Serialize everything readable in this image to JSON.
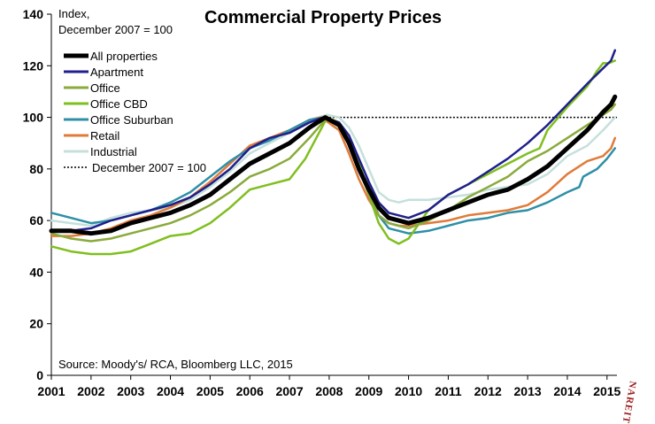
{
  "chart_data": {
    "type": "line",
    "title": "Commercial Property Prices",
    "y_axis_note": [
      "Index,",
      "December 2007 = 100"
    ],
    "source": "Source:  Moody's/ RCA, Bloomberg LLC, 2015",
    "watermark": "NAREIT",
    "xlim": [
      2001,
      2015.25
    ],
    "ylim": [
      0,
      140
    ],
    "x_ticks": [
      2001,
      2002,
      2003,
      2004,
      2005,
      2006,
      2007,
      2008,
      2009,
      2010,
      2011,
      2012,
      2013,
      2014,
      2015
    ],
    "y_ticks": [
      0,
      20,
      40,
      60,
      80,
      100,
      120,
      140
    ],
    "grid": false,
    "legend_position": "top-left",
    "reference_line": {
      "label": "December 2007 = 100",
      "value": 100,
      "x_start": 2008,
      "x_end": 2015.25,
      "style": "dotted"
    },
    "series": [
      {
        "name": "All properties",
        "color": "#000000",
        "width": 5,
        "points": [
          [
            2001,
            56
          ],
          [
            2001.5,
            56
          ],
          [
            2002,
            55
          ],
          [
            2002.5,
            56
          ],
          [
            2003,
            59
          ],
          [
            2003.5,
            61
          ],
          [
            2004,
            63
          ],
          [
            2004.5,
            66
          ],
          [
            2005,
            70
          ],
          [
            2005.5,
            76
          ],
          [
            2006,
            82
          ],
          [
            2006.5,
            86
          ],
          [
            2007,
            90
          ],
          [
            2007.5,
            96
          ],
          [
            2007.9,
            100
          ],
          [
            2008.25,
            97
          ],
          [
            2008.5,
            90
          ],
          [
            2008.75,
            80
          ],
          [
            2009,
            72
          ],
          [
            2009.25,
            65
          ],
          [
            2009.5,
            61
          ],
          [
            2009.75,
            60
          ],
          [
            2010,
            59
          ],
          [
            2010.5,
            61
          ],
          [
            2011,
            64
          ],
          [
            2011.5,
            67
          ],
          [
            2012,
            70
          ],
          [
            2012.5,
            72
          ],
          [
            2013,
            76
          ],
          [
            2013.5,
            81
          ],
          [
            2014,
            88
          ],
          [
            2014.5,
            95
          ],
          [
            2014.9,
            102
          ],
          [
            2015.1,
            105
          ],
          [
            2015.2,
            108
          ]
        ]
      },
      {
        "name": "Apartment",
        "color": "#1f1f8c",
        "width": 2.5,
        "points": [
          [
            2001,
            56
          ],
          [
            2001.5,
            56
          ],
          [
            2002,
            57
          ],
          [
            2002.5,
            60
          ],
          [
            2003,
            62
          ],
          [
            2003.5,
            64
          ],
          [
            2004,
            66
          ],
          [
            2004.5,
            69
          ],
          [
            2005,
            74
          ],
          [
            2005.5,
            80
          ],
          [
            2006,
            88
          ],
          [
            2006.5,
            92
          ],
          [
            2007,
            94
          ],
          [
            2007.5,
            98
          ],
          [
            2007.85,
            100
          ],
          [
            2008.25,
            98
          ],
          [
            2008.5,
            93
          ],
          [
            2008.75,
            84
          ],
          [
            2009,
            75
          ],
          [
            2009.25,
            67
          ],
          [
            2009.5,
            63
          ],
          [
            2009.75,
            62
          ],
          [
            2010,
            61
          ],
          [
            2010.5,
            64
          ],
          [
            2011,
            70
          ],
          [
            2011.5,
            74
          ],
          [
            2012,
            79
          ],
          [
            2012.5,
            84
          ],
          [
            2013,
            90
          ],
          [
            2013.5,
            97
          ],
          [
            2014,
            105
          ],
          [
            2014.5,
            113
          ],
          [
            2014.9,
            119
          ],
          [
            2015.1,
            122
          ],
          [
            2015.2,
            126
          ]
        ]
      },
      {
        "name": "Office",
        "color": "#8aaa3c",
        "width": 2.5,
        "points": [
          [
            2001,
            55
          ],
          [
            2001.5,
            53
          ],
          [
            2002,
            52
          ],
          [
            2002.5,
            53
          ],
          [
            2003,
            55
          ],
          [
            2003.5,
            57
          ],
          [
            2004,
            59
          ],
          [
            2004.5,
            62
          ],
          [
            2005,
            66
          ],
          [
            2005.5,
            71
          ],
          [
            2006,
            77
          ],
          [
            2006.5,
            80
          ],
          [
            2007,
            84
          ],
          [
            2007.5,
            92
          ],
          [
            2007.95,
            100
          ],
          [
            2008.25,
            98
          ],
          [
            2008.5,
            92
          ],
          [
            2008.75,
            80
          ],
          [
            2009,
            70
          ],
          [
            2009.25,
            62
          ],
          [
            2009.5,
            59
          ],
          [
            2009.75,
            58
          ],
          [
            2010,
            57
          ],
          [
            2010.5,
            60
          ],
          [
            2011,
            64
          ],
          [
            2011.5,
            69
          ],
          [
            2012,
            73
          ],
          [
            2012.5,
            77
          ],
          [
            2013,
            83
          ],
          [
            2013.5,
            87
          ],
          [
            2014,
            92
          ],
          [
            2014.5,
            97
          ],
          [
            2014.9,
            101
          ],
          [
            2015.1,
            103
          ],
          [
            2015.2,
            105
          ]
        ]
      },
      {
        "name": "Office CBD",
        "color": "#7fbf1f",
        "width": 2.5,
        "points": [
          [
            2001,
            50
          ],
          [
            2001.5,
            48
          ],
          [
            2002,
            47
          ],
          [
            2002.5,
            47
          ],
          [
            2003,
            48
          ],
          [
            2003.5,
            51
          ],
          [
            2004,
            54
          ],
          [
            2004.5,
            55
          ],
          [
            2005,
            59
          ],
          [
            2005.5,
            65
          ],
          [
            2006,
            72
          ],
          [
            2006.5,
            74
          ],
          [
            2007,
            76
          ],
          [
            2007.4,
            84
          ],
          [
            2007.95,
            100
          ],
          [
            2008.25,
            98
          ],
          [
            2008.5,
            92
          ],
          [
            2008.75,
            83
          ],
          [
            2009,
            70
          ],
          [
            2009.25,
            59
          ],
          [
            2009.5,
            53
          ],
          [
            2009.75,
            51
          ],
          [
            2010,
            53
          ],
          [
            2010.5,
            64
          ],
          [
            2011,
            70
          ],
          [
            2011.5,
            74
          ],
          [
            2012,
            78
          ],
          [
            2012.5,
            82
          ],
          [
            2013,
            86
          ],
          [
            2013.3,
            88
          ],
          [
            2013.5,
            95
          ],
          [
            2014,
            104
          ],
          [
            2014.5,
            112
          ],
          [
            2014.75,
            118
          ],
          [
            2014.9,
            121
          ],
          [
            2015.05,
            121
          ],
          [
            2015.2,
            122
          ]
        ]
      },
      {
        "name": "Office Suburban",
        "color": "#2f8fa6",
        "width": 2.5,
        "points": [
          [
            2001,
            63
          ],
          [
            2001.5,
            61
          ],
          [
            2002,
            59
          ],
          [
            2002.5,
            60
          ],
          [
            2003,
            62
          ],
          [
            2003.5,
            64
          ],
          [
            2004,
            67
          ],
          [
            2004.5,
            71
          ],
          [
            2005,
            77
          ],
          [
            2005.5,
            83
          ],
          [
            2006,
            88
          ],
          [
            2006.5,
            91
          ],
          [
            2007,
            95
          ],
          [
            2007.5,
            99
          ],
          [
            2007.9,
            100
          ],
          [
            2008.25,
            98
          ],
          [
            2008.5,
            91
          ],
          [
            2008.75,
            81
          ],
          [
            2009,
            71
          ],
          [
            2009.25,
            62
          ],
          [
            2009.5,
            57
          ],
          [
            2009.75,
            56
          ],
          [
            2010,
            55
          ],
          [
            2010.5,
            56
          ],
          [
            2011,
            58
          ],
          [
            2011.5,
            60
          ],
          [
            2012,
            61
          ],
          [
            2012.5,
            63
          ],
          [
            2013,
            64
          ],
          [
            2013.5,
            67
          ],
          [
            2014,
            71
          ],
          [
            2014.3,
            73
          ],
          [
            2014.4,
            77
          ],
          [
            2014.75,
            80
          ],
          [
            2015,
            84
          ],
          [
            2015.2,
            88
          ]
        ]
      },
      {
        "name": "Retail",
        "color": "#e07b39",
        "width": 2.5,
        "points": [
          [
            2001,
            54
          ],
          [
            2001.5,
            54
          ],
          [
            2002,
            55
          ],
          [
            2002.5,
            57
          ],
          [
            2003,
            60
          ],
          [
            2003.5,
            62
          ],
          [
            2004,
            65
          ],
          [
            2004.5,
            69
          ],
          [
            2005,
            75
          ],
          [
            2005.5,
            82
          ],
          [
            2006,
            89
          ],
          [
            2006.5,
            92
          ],
          [
            2007,
            95
          ],
          [
            2007.5,
            99
          ],
          [
            2007.8,
            100
          ],
          [
            2008.25,
            95
          ],
          [
            2008.5,
            86
          ],
          [
            2008.75,
            76
          ],
          [
            2009,
            68
          ],
          [
            2009.25,
            62
          ],
          [
            2009.5,
            59
          ],
          [
            2009.75,
            58
          ],
          [
            2010,
            58
          ],
          [
            2010.5,
            59
          ],
          [
            2011,
            60
          ],
          [
            2011.5,
            62
          ],
          [
            2012,
            63
          ],
          [
            2012.5,
            64
          ],
          [
            2013,
            66
          ],
          [
            2013.5,
            71
          ],
          [
            2014,
            78
          ],
          [
            2014.5,
            83
          ],
          [
            2014.9,
            85
          ],
          [
            2015.1,
            88
          ],
          [
            2015.2,
            92
          ]
        ]
      },
      {
        "name": "Industrial",
        "color": "#c5e0dc",
        "width": 2.5,
        "points": [
          [
            2001,
            60
          ],
          [
            2001.5,
            59
          ],
          [
            2002,
            58
          ],
          [
            2002.5,
            61
          ],
          [
            2003,
            63
          ],
          [
            2003.5,
            64
          ],
          [
            2004,
            65
          ],
          [
            2004.5,
            68
          ],
          [
            2005,
            73
          ],
          [
            2005.5,
            79
          ],
          [
            2006,
            86
          ],
          [
            2006.5,
            90
          ],
          [
            2007,
            94
          ],
          [
            2007.5,
            99
          ],
          [
            2007.95,
            101
          ],
          [
            2008.25,
            100
          ],
          [
            2008.5,
            96
          ],
          [
            2008.75,
            89
          ],
          [
            2009,
            80
          ],
          [
            2009.25,
            71
          ],
          [
            2009.5,
            68
          ],
          [
            2009.75,
            67
          ],
          [
            2010,
            68
          ],
          [
            2010.5,
            68
          ],
          [
            2011,
            69
          ],
          [
            2011.5,
            70
          ],
          [
            2012,
            72
          ],
          [
            2012.5,
            73
          ],
          [
            2013,
            74
          ],
          [
            2013.5,
            78
          ],
          [
            2014,
            85
          ],
          [
            2014.5,
            89
          ],
          [
            2014.9,
            95
          ],
          [
            2015.2,
            100
          ]
        ]
      }
    ]
  }
}
